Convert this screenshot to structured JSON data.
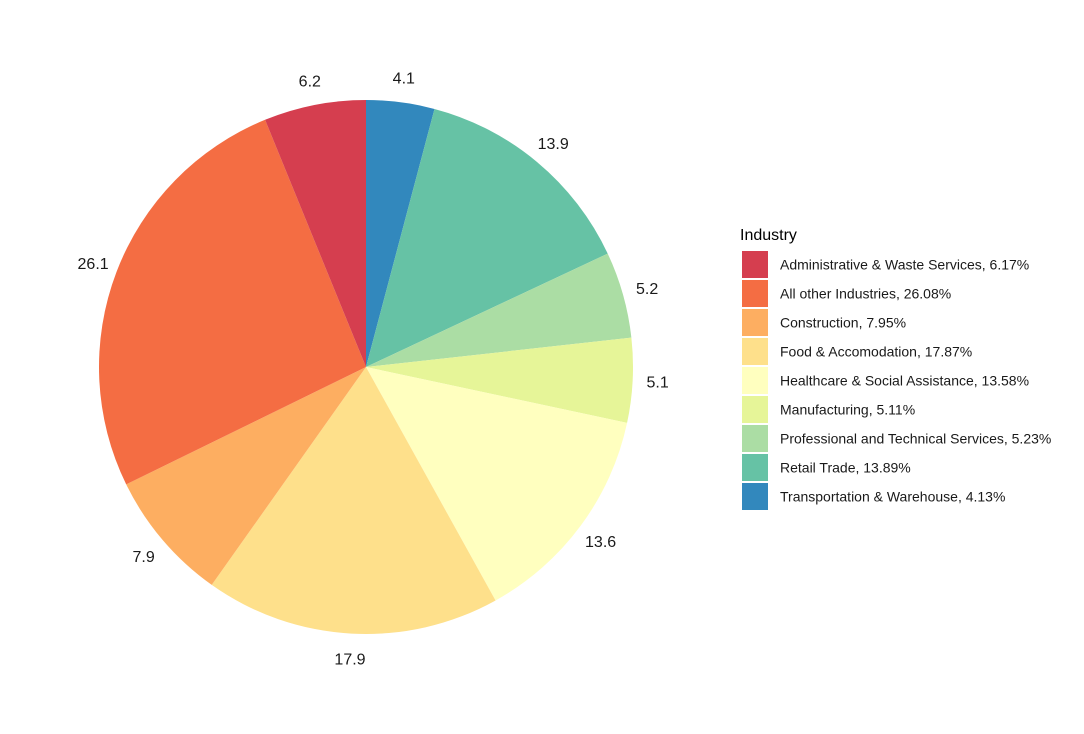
{
  "chart_data": {
    "type": "pie",
    "title": "",
    "legend_title": "Industry",
    "legend_position": "right",
    "start": "top",
    "direction": "clockwise",
    "slices": [
      {
        "category": "Transportation & Warehouse",
        "value": 4.13,
        "label": "4.1",
        "legend": "Transportation & Warehouse, 4.13%",
        "color": "#3288bd"
      },
      {
        "category": "Retail Trade",
        "value": 13.89,
        "label": "13.9",
        "legend": "Retail Trade, 13.89%",
        "color": "#66c2a5"
      },
      {
        "category": "Professional and Technical Services",
        "value": 5.23,
        "label": "5.2",
        "legend": "Professional and Technical Services, 5.23%",
        "color": "#abdda4"
      },
      {
        "category": "Manufacturing",
        "value": 5.11,
        "label": "5.1",
        "legend": "Manufacturing, 5.11%",
        "color": "#e6f598"
      },
      {
        "category": "Healthcare & Social Assistance",
        "value": 13.58,
        "label": "13.6",
        "legend": "Healthcare & Social Assistance, 13.58%",
        "color": "#ffffbf"
      },
      {
        "category": "Food & Accomodation",
        "value": 17.87,
        "label": "17.9",
        "legend": "Food & Accomodation, 17.87%",
        "color": "#fee08b"
      },
      {
        "category": "Construction",
        "value": 7.95,
        "label": "7.9",
        "legend": "Construction, 7.95%",
        "color": "#fdae61"
      },
      {
        "category": "All other Industries",
        "value": 26.08,
        "label": "26.1",
        "legend": "All other Industries, 26.08%",
        "color": "#f46d43"
      },
      {
        "category": "Administrative & Waste Services",
        "value": 6.17,
        "label": "6.2",
        "legend": "Administrative & Waste Services, 6.17%",
        "color": "#d53e4f"
      }
    ],
    "legend_order": [
      "Administrative & Waste Services",
      "All other Industries",
      "Construction",
      "Food & Accomodation",
      "Healthcare & Social Assistance",
      "Manufacturing",
      "Professional and Technical Services",
      "Retail Trade",
      "Transportation & Warehouse"
    ]
  }
}
